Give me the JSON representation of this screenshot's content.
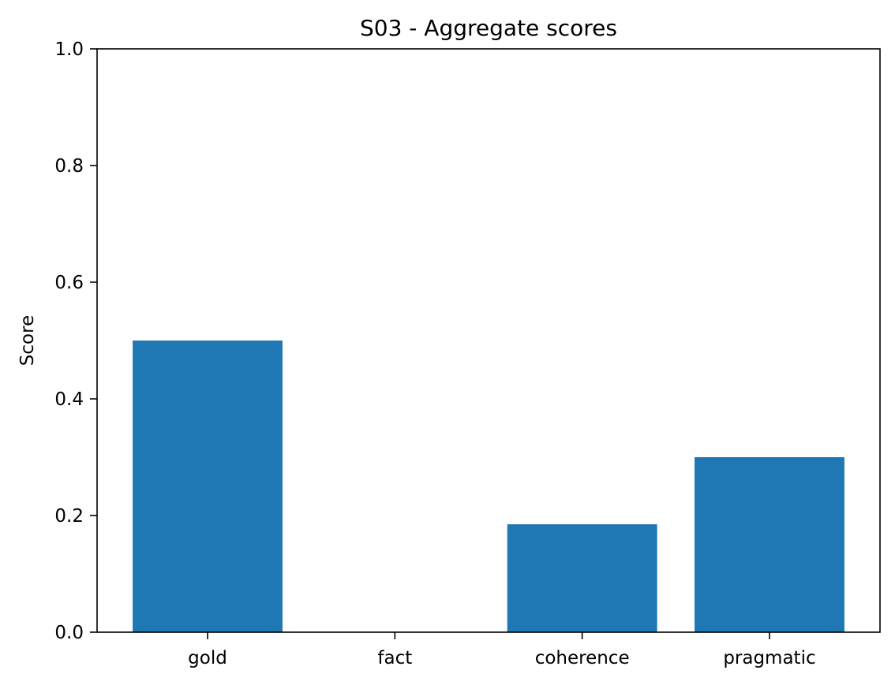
{
  "chart_data": {
    "type": "bar",
    "title": "S03 - Aggregate scores",
    "xlabel": "",
    "ylabel": "Score",
    "categories": [
      "gold",
      "fact",
      "coherence",
      "pragmatic"
    ],
    "values": [
      0.5,
      0.0,
      0.185,
      0.3
    ],
    "ylim": [
      0,
      1.0
    ],
    "yticks": [
      0.0,
      0.2,
      0.4,
      0.6,
      0.8,
      1.0
    ],
    "ytick_labels": [
      "0.0",
      "0.2",
      "0.4",
      "0.6",
      "0.8",
      "1.0"
    ],
    "bar_color": "#1f77b4",
    "grid": false,
    "legend": "none"
  }
}
